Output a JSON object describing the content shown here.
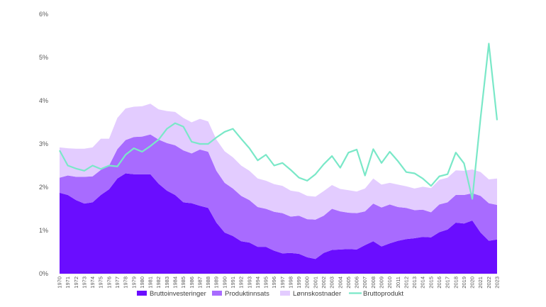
{
  "chart_data": {
    "type": "area",
    "title": "",
    "xlabel": "",
    "ylabel": "",
    "ylim": [
      0,
      6
    ],
    "y_ticks": [
      "0%",
      "1%",
      "2%",
      "3%",
      "4%",
      "5%",
      "6%"
    ],
    "x": [
      "1970",
      "1971",
      "1972",
      "1973",
      "1974",
      "1975",
      "1976",
      "1977",
      "1978",
      "1979",
      "1980",
      "1981",
      "1982",
      "1983",
      "1984",
      "1985",
      "1986",
      "1987",
      "1988",
      "1989",
      "1990",
      "1991",
      "1992",
      "1993",
      "1994",
      "1995",
      "1996",
      "1997",
      "1998",
      "1999",
      "2000",
      "2001",
      "2002",
      "2003",
      "2004",
      "2005",
      "2006",
      "2007",
      "2008",
      "2009",
      "2010",
      "2011",
      "2012",
      "2013",
      "2014",
      "2015",
      "2016",
      "2017",
      "2018",
      "2019",
      "2020",
      "2021",
      "2022",
      "2023"
    ],
    "stacked": true,
    "grid": false,
    "legend_position": "bottom",
    "series": [
      {
        "name": "Bruttoinvesteringer",
        "kind": "area",
        "color": "#6a0dff",
        "values": [
          1.87,
          1.82,
          1.7,
          1.62,
          1.65,
          1.82,
          1.95,
          2.2,
          2.32,
          2.3,
          2.3,
          2.3,
          2.08,
          1.92,
          1.82,
          1.65,
          1.63,
          1.57,
          1.52,
          1.18,
          0.95,
          0.87,
          0.75,
          0.72,
          0.62,
          0.62,
          0.53,
          0.47,
          0.48,
          0.46,
          0.38,
          0.34,
          0.48,
          0.55,
          0.56,
          0.57,
          0.56,
          0.66,
          0.75,
          0.63,
          0.7,
          0.76,
          0.8,
          0.82,
          0.85,
          0.84,
          0.96,
          1.02,
          1.18,
          1.16,
          1.23,
          0.95,
          0.76,
          0.79
        ]
      },
      {
        "name": "Produktinnsats",
        "kind": "area",
        "color": "#a86bff",
        "values": [
          0.35,
          0.45,
          0.54,
          0.62,
          0.6,
          0.58,
          0.55,
          0.68,
          0.77,
          0.86,
          0.87,
          0.92,
          1.02,
          1.1,
          1.15,
          1.2,
          1.15,
          1.3,
          1.3,
          1.2,
          1.15,
          1.1,
          1.05,
          0.98,
          0.92,
          0.88,
          0.9,
          0.93,
          0.84,
          0.88,
          0.88,
          0.91,
          0.86,
          0.95,
          0.88,
          0.84,
          0.84,
          0.78,
          0.87,
          0.9,
          0.9,
          0.78,
          0.72,
          0.65,
          0.63,
          0.58,
          0.64,
          0.63,
          0.64,
          0.66,
          0.63,
          0.85,
          0.87,
          0.8
        ]
      },
      {
        "name": "Lønnskostnader",
        "kind": "area",
        "color": "#e3ccff",
        "values": [
          0.7,
          0.63,
          0.65,
          0.65,
          0.67,
          0.72,
          0.62,
          0.72,
          0.73,
          0.7,
          0.7,
          0.71,
          0.7,
          0.74,
          0.77,
          0.75,
          0.72,
          0.71,
          0.7,
          0.72,
          0.73,
          0.72,
          0.7,
          0.68,
          0.66,
          0.65,
          0.64,
          0.63,
          0.6,
          0.55,
          0.54,
          0.53,
          0.57,
          0.55,
          0.52,
          0.52,
          0.5,
          0.53,
          0.58,
          0.53,
          0.5,
          0.52,
          0.5,
          0.5,
          0.53,
          0.56,
          0.57,
          0.57,
          0.57,
          0.56,
          0.55,
          0.55,
          0.55,
          0.61
        ]
      },
      {
        "name": "Bruttoprodukt",
        "kind": "line",
        "color": "#7ae8c8",
        "values": [
          2.85,
          2.5,
          2.43,
          2.38,
          2.5,
          2.42,
          2.5,
          2.48,
          2.75,
          2.9,
          2.82,
          2.95,
          3.1,
          3.35,
          3.48,
          3.4,
          3.05,
          3.0,
          3.0,
          3.15,
          3.28,
          3.35,
          3.12,
          2.9,
          2.62,
          2.75,
          2.5,
          2.56,
          2.4,
          2.22,
          2.15,
          2.3,
          2.53,
          2.72,
          2.45,
          2.8,
          2.87,
          2.27,
          2.88,
          2.56,
          2.82,
          2.6,
          2.35,
          2.32,
          2.2,
          2.03,
          2.25,
          2.3,
          2.8,
          2.55,
          1.73,
          3.6,
          5.32,
          3.55
        ]
      }
    ]
  }
}
